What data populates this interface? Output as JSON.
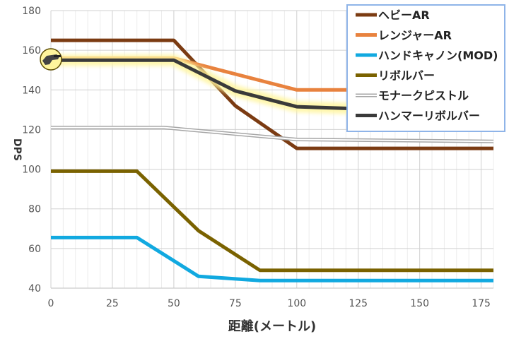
{
  "chart_data": {
    "type": "line",
    "title": "",
    "xlabel": "距離(メートル)",
    "ylabel": "DPS",
    "xlim": [
      0,
      180
    ],
    "ylim": [
      40,
      180
    ],
    "x_ticks": [
      0,
      25,
      50,
      75,
      100,
      125,
      150,
      175
    ],
    "y_ticks": [
      40,
      60,
      80,
      100,
      120,
      140,
      160,
      180
    ],
    "grid": true,
    "legend_position": "top-right",
    "series": [
      {
        "name": "ヘビーAR",
        "color": "#7b3b12",
        "style": "solid",
        "points": [
          [
            0,
            165
          ],
          [
            50,
            165
          ],
          [
            75,
            132
          ],
          [
            100,
            110.5
          ],
          [
            180,
            110.5
          ]
        ]
      },
      {
        "name": "レンジャーAR",
        "color": "#e8823e",
        "style": "solid",
        "points": [
          [
            0,
            156
          ],
          [
            50,
            156
          ],
          [
            100,
            140
          ],
          [
            180,
            140
          ]
        ]
      },
      {
        "name": "ハンドキャノン(MOD)",
        "color": "#11a9e0",
        "style": "solid",
        "points": [
          [
            0,
            65.5
          ],
          [
            35,
            65.5
          ],
          [
            60,
            46
          ],
          [
            85,
            43.8
          ],
          [
            180,
            43.8
          ]
        ]
      },
      {
        "name": "リボルバー",
        "color": "#7a6200",
        "style": "solid",
        "points": [
          [
            0,
            99
          ],
          [
            35,
            99
          ],
          [
            60,
            69
          ],
          [
            85,
            49
          ],
          [
            180,
            49
          ]
        ]
      },
      {
        "name": "モナークピストル",
        "color": "#a6a6a6",
        "style": "double",
        "points": [
          [
            0,
            121
          ],
          [
            46,
            121
          ],
          [
            100,
            115
          ],
          [
            180,
            114
          ]
        ]
      },
      {
        "name": "ハンマーリボルバー",
        "color": "#3a3a3a",
        "style": "solid-glow",
        "glow_color": "#fff59d",
        "points": [
          [
            0,
            155
          ],
          [
            50,
            155
          ],
          [
            75,
            139.5
          ],
          [
            100,
            131.5
          ],
          [
            125,
            130.5
          ],
          [
            180,
            130
          ]
        ]
      }
    ]
  }
}
